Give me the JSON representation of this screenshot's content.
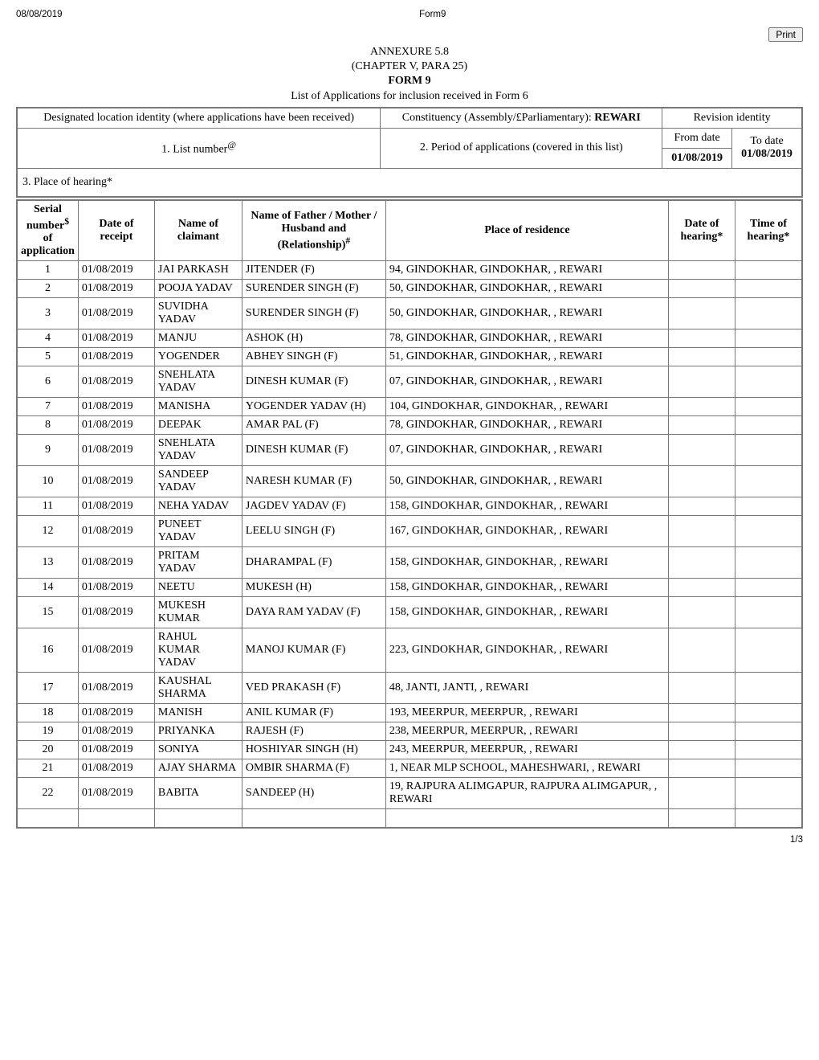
{
  "meta": {
    "dateLabel": "08/08/2019",
    "formLabel": "Form9"
  },
  "printBtn": {
    "label": "Print"
  },
  "header": {
    "annexure": "ANNEXURE 5.8",
    "chapter": "(CHAPTER V, PARA 25)",
    "form": "FORM 9",
    "listLine": "List of Applications for inclusion received in Form 6"
  },
  "outer": {
    "dliLabel": "Designated location identity (where applications have been received)",
    "constLabel": "Constituency (Assembly/£Parliamentary): ",
    "constValue": "REWARI",
    "revLabel": "Revision identity",
    "listNumLabel": "1. List number",
    "listNumSup": "@",
    "periodLabel": "2. Period of applications (covered in this list)",
    "fromDateLabel": "From date",
    "fromDateValue": "01/08/2019",
    "toDateLabel": "To date",
    "toDateValue": "01/08/2019",
    "placeLabel": "3. Place of hearing*"
  },
  "columns": {
    "sn": "Serial number",
    "snSup": "$",
    "sn2": " of application",
    "dor": "Date of receipt",
    "clm": "Name of claimant",
    "rel1": "Name of Father / Mother / Husband and (Relationship)",
    "relSup": "#",
    "por": "Place of residence",
    "dh": "Date of hearing*",
    "th": "Time of hearing*"
  },
  "rows": [
    {
      "sn": "1",
      "dor": "01/08/2019",
      "clm": "JAI PARKASH",
      "rel": "JITENDER (F)",
      "por": "94, GINDOKHAR, GINDOKHAR, , REWARI"
    },
    {
      "sn": "2",
      "dor": "01/08/2019",
      "clm": "POOJA YADAV",
      "rel": "SURENDER SINGH (F)",
      "por": "50, GINDOKHAR, GINDOKHAR, , REWARI"
    },
    {
      "sn": "3",
      "dor": "01/08/2019",
      "clm": "SUVIDHA YADAV",
      "rel": "SURENDER SINGH (F)",
      "por": "50, GINDOKHAR, GINDOKHAR, , REWARI"
    },
    {
      "sn": "4",
      "dor": "01/08/2019",
      "clm": "MANJU",
      "rel": "ASHOK (H)",
      "por": "78, GINDOKHAR, GINDOKHAR, , REWARI"
    },
    {
      "sn": "5",
      "dor": "01/08/2019",
      "clm": "YOGENDER",
      "rel": "ABHEY SINGH (F)",
      "por": "51, GINDOKHAR, GINDOKHAR, , REWARI"
    },
    {
      "sn": "6",
      "dor": "01/08/2019",
      "clm": "SNEHLATA YADAV",
      "rel": "DINESH KUMAR (F)",
      "por": "07, GINDOKHAR, GINDOKHAR, , REWARI"
    },
    {
      "sn": "7",
      "dor": "01/08/2019",
      "clm": "MANISHA",
      "rel": "YOGENDER YADAV (H)",
      "por": "104, GINDOKHAR, GINDOKHAR, , REWARI"
    },
    {
      "sn": "8",
      "dor": "01/08/2019",
      "clm": "DEEPAK",
      "rel": "AMAR PAL (F)",
      "por": "78, GINDOKHAR, GINDOKHAR, , REWARI"
    },
    {
      "sn": "9",
      "dor": "01/08/2019",
      "clm": "SNEHLATA YADAV",
      "rel": "DINESH KUMAR (F)",
      "por": "07, GINDOKHAR, GINDOKHAR, , REWARI"
    },
    {
      "sn": "10",
      "dor": "01/08/2019",
      "clm": "SANDEEP YADAV",
      "rel": "NARESH KUMAR (F)",
      "por": "50, GINDOKHAR, GINDOKHAR, , REWARI"
    },
    {
      "sn": "11",
      "dor": "01/08/2019",
      "clm": "NEHA YADAV",
      "rel": "JAGDEV YADAV (F)",
      "por": "158, GINDOKHAR, GINDOKHAR, , REWARI"
    },
    {
      "sn": "12",
      "dor": "01/08/2019",
      "clm": "PUNEET YADAV",
      "rel": "LEELU SINGH (F)",
      "por": "167, GINDOKHAR, GINDOKHAR, , REWARI"
    },
    {
      "sn": "13",
      "dor": "01/08/2019",
      "clm": "PRITAM YADAV",
      "rel": "DHARAMPAL (F)",
      "por": "158, GINDOKHAR, GINDOKHAR, , REWARI"
    },
    {
      "sn": "14",
      "dor": "01/08/2019",
      "clm": "NEETU",
      "rel": "MUKESH (H)",
      "por": "158, GINDOKHAR, GINDOKHAR, , REWARI"
    },
    {
      "sn": "15",
      "dor": "01/08/2019",
      "clm": "MUKESH KUMAR",
      "rel": "DAYA RAM YADAV (F)",
      "por": "158, GINDOKHAR, GINDOKHAR, , REWARI"
    },
    {
      "sn": "16",
      "dor": "01/08/2019",
      "clm": "RAHUL KUMAR YADAV",
      "rel": "MANOJ KUMAR (F)",
      "por": "223, GINDOKHAR, GINDOKHAR, , REWARI"
    },
    {
      "sn": "17",
      "dor": "01/08/2019",
      "clm": "KAUSHAL SHARMA",
      "rel": "VED PRAKASH (F)",
      "por": "48, JANTI, JANTI, , REWARI"
    },
    {
      "sn": "18",
      "dor": "01/08/2019",
      "clm": "MANISH",
      "rel": "ANIL KUMAR (F)",
      "por": "193, MEERPUR, MEERPUR, , REWARI"
    },
    {
      "sn": "19",
      "dor": "01/08/2019",
      "clm": "PRIYANKA",
      "rel": "RAJESH (F)",
      "por": "238, MEERPUR, MEERPUR, , REWARI"
    },
    {
      "sn": "20",
      "dor": "01/08/2019",
      "clm": "SONIYA",
      "rel": "HOSHIYAR SINGH (H)",
      "por": "243, MEERPUR, MEERPUR, , REWARI"
    },
    {
      "sn": "21",
      "dor": "01/08/2019",
      "clm": "AJAY SHARMA",
      "rel": "OMBIR SHARMA (F)",
      "por": "1, NEAR MLP SCHOOL, MAHESHWARI, , REWARI"
    },
    {
      "sn": "22",
      "dor": "01/08/2019",
      "clm": "BABITA",
      "rel": "SANDEEP (H)",
      "por": "19, RAJPURA ALIMGAPUR, RAJPURA ALIMGAPUR, , REWARI"
    }
  ],
  "pager": "1/3"
}
